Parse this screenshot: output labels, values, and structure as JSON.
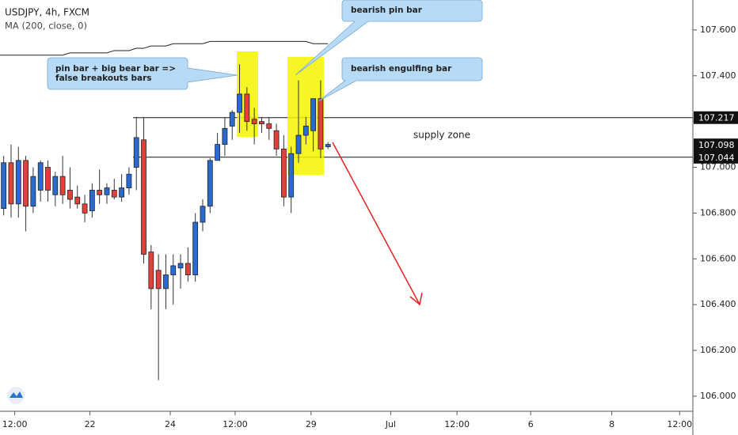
{
  "chart_data": {
    "type": "candlestick",
    "title": "USDJPY, 4h, FXCM",
    "indicator": "MA (200, close, 0)",
    "x": [
      0,
      1,
      2,
      3,
      4,
      5,
      6,
      7,
      8,
      9,
      10,
      11,
      12,
      13,
      14,
      15,
      16,
      17,
      18,
      19,
      20,
      21,
      22,
      23,
      24,
      25,
      26,
      27,
      28,
      29,
      30,
      31,
      32,
      33,
      34,
      35,
      36,
      37,
      38,
      39,
      40,
      41,
      42,
      43,
      44,
      45
    ],
    "open": [
      107.0,
      106.82,
      107.02,
      106.84,
      107.03,
      106.83,
      106.9,
      107.0,
      106.88,
      106.96,
      106.9,
      106.87,
      106.84,
      106.81,
      106.9,
      106.88,
      106.9,
      106.87,
      106.91,
      107.0,
      107.12,
      106.63,
      106.55,
      106.47,
      106.53,
      106.56,
      106.58,
      106.53,
      106.76,
      106.83,
      107.03,
      107.1,
      107.18,
      107.24,
      107.32,
      107.21,
      107.2,
      107.19,
      107.16,
      107.08,
      106.87,
      107.06,
      107.14,
      107.16,
      107.3,
      107.09
    ],
    "high": [
      107.08,
      107.05,
      107.1,
      107.09,
      107.05,
      107.0,
      107.03,
      107.03,
      106.98,
      107.05,
      107.0,
      106.92,
      106.88,
      106.93,
      106.99,
      106.93,
      106.95,
      106.97,
      107.0,
      107.22,
      107.22,
      106.66,
      106.62,
      106.62,
      106.62,
      106.62,
      106.65,
      106.8,
      106.86,
      107.04,
      107.15,
      107.22,
      107.25,
      107.45,
      107.35,
      107.26,
      107.22,
      107.22,
      107.19,
      107.14,
      107.09,
      107.38,
      107.22,
      107.3,
      107.38,
      107.11
    ],
    "low": [
      106.75,
      106.79,
      106.78,
      106.78,
      106.72,
      106.8,
      106.85,
      106.85,
      106.83,
      106.84,
      106.82,
      106.82,
      106.76,
      106.78,
      106.84,
      106.84,
      106.86,
      106.85,
      106.88,
      106.9,
      106.58,
      106.38,
      106.07,
      106.38,
      106.4,
      106.47,
      106.5,
      106.5,
      106.72,
      106.8,
      107.03,
      107.05,
      107.12,
      107.15,
      107.16,
      107.1,
      107.15,
      107.12,
      107.05,
      106.83,
      106.8,
      107.02,
      107.1,
      107.07,
      107.04,
      107.08
    ],
    "close": [
      106.82,
      107.02,
      106.84,
      107.03,
      106.83,
      106.96,
      107.02,
      106.9,
      106.96,
      106.88,
      106.86,
      106.84,
      106.8,
      106.9,
      106.88,
      106.91,
      106.87,
      106.91,
      106.97,
      107.13,
      106.62,
      106.47,
      106.47,
      106.53,
      106.57,
      106.58,
      106.53,
      106.76,
      106.83,
      107.03,
      107.1,
      107.17,
      107.24,
      107.32,
      107.2,
      107.19,
      107.19,
      107.17,
      107.08,
      106.87,
      107.06,
      107.14,
      107.18,
      107.3,
      107.08,
      107.1
    ],
    "ma": [
      107.49,
      107.49,
      107.49,
      107.49,
      107.49,
      107.49,
      107.49,
      107.49,
      107.49,
      107.49,
      107.5,
      107.5,
      107.5,
      107.5,
      107.5,
      107.5,
      107.51,
      107.51,
      107.51,
      107.52,
      107.52,
      107.53,
      107.53,
      107.53,
      107.54,
      107.54,
      107.54,
      107.54,
      107.54,
      107.55,
      107.55,
      107.55,
      107.55,
      107.55,
      107.55,
      107.55,
      107.55,
      107.55,
      107.55,
      107.55,
      107.55,
      107.55,
      107.55,
      107.54,
      107.54,
      107.54
    ],
    "up_color": "#2a6bd1",
    "down_color": "#e2413b",
    "ma_color": "#222222",
    "xlim": [
      0.5,
      94.5
    ],
    "xticks": [
      {
        "value": 2.5,
        "label": "12:00"
      },
      {
        "value": 12.7,
        "label": "22"
      },
      {
        "value": 23.6,
        "label": "24"
      },
      {
        "value": 32.4,
        "label": "12:00"
      },
      {
        "value": 42.7,
        "label": "29"
      },
      {
        "value": 53.5,
        "label": "Jul"
      },
      {
        "value": 62.5,
        "label": "12:00"
      },
      {
        "value": 72.5,
        "label": "6"
      },
      {
        "value": 83.5,
        "label": "8"
      },
      {
        "value": 92.7,
        "label": "12:00"
      }
    ],
    "ylim": [
      105.934,
      107.731
    ],
    "yticks": [
      {
        "value": 106.0,
        "label": "106.000"
      },
      {
        "value": 106.2,
        "label": "106.200"
      },
      {
        "value": 106.4,
        "label": "106.400"
      },
      {
        "value": 106.6,
        "label": "106.600"
      },
      {
        "value": 106.8,
        "label": "106.800"
      },
      {
        "value": 107.0,
        "label": "107.000"
      },
      {
        "value": 107.2,
        "label": "107.200"
      },
      {
        "value": 107.4,
        "label": "107.400"
      },
      {
        "value": 107.6,
        "label": "107.600"
      }
    ],
    "levels": [
      107.217,
      107.044
    ],
    "last_price": 107.098,
    "annotations": {
      "pin_bear": [
        "pin bar + big bear bar =>",
        "false breakouts bars"
      ],
      "pin": "bearish pin bar",
      "engulfing": "bearish engulfing bar",
      "zone": "supply zone"
    }
  }
}
